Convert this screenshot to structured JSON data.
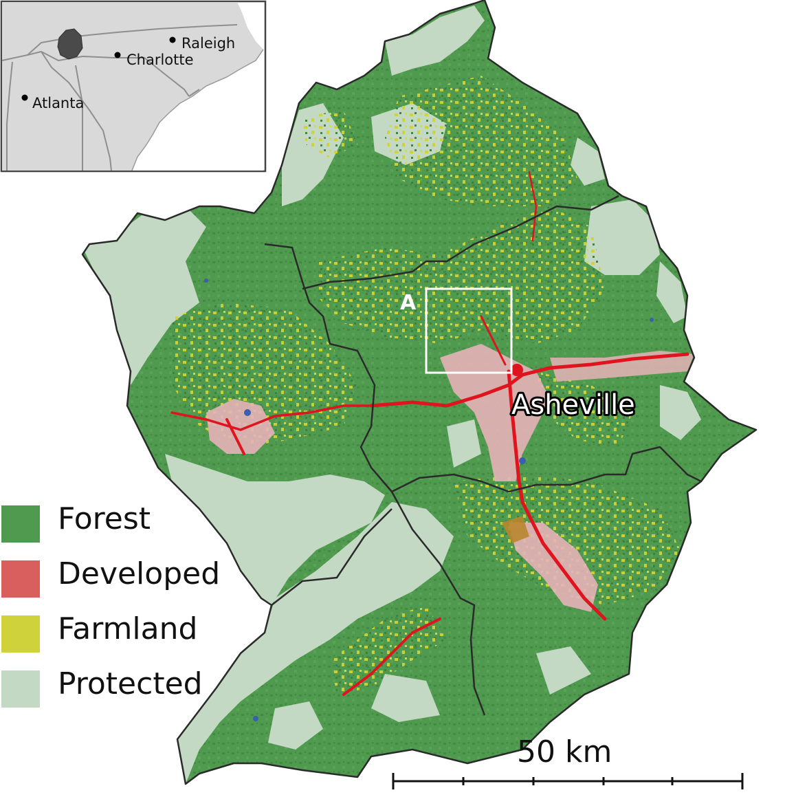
{
  "colors": {
    "forest": "#4f9a4f",
    "forest_dark": "#3d7f3e",
    "developed": "#d95f5f",
    "developed_hot": "#e0141e",
    "farmland": "#cfd23a",
    "protected": "#c3d9c3",
    "boundary": "#2a2a2a",
    "inset_land": "#d9d9d9",
    "inset_highlight": "#4a4a4a",
    "inset_border": "#444444"
  },
  "inset": {
    "cities": [
      {
        "name": "Raleigh"
      },
      {
        "name": "Charlotte"
      },
      {
        "name": "Atlanta"
      }
    ]
  },
  "map": {
    "box_label": "A",
    "city_label": "Asheville"
  },
  "legend": {
    "items": [
      {
        "label": "Forest",
        "color": "#4f9a4f"
      },
      {
        "label": "Developed",
        "color": "#d95f5f"
      },
      {
        "label": "Farmland",
        "color": "#cfd23a"
      },
      {
        "label": "Protected",
        "color": "#c3d9c3"
      }
    ]
  },
  "scale_bar": {
    "label": "50 km"
  }
}
